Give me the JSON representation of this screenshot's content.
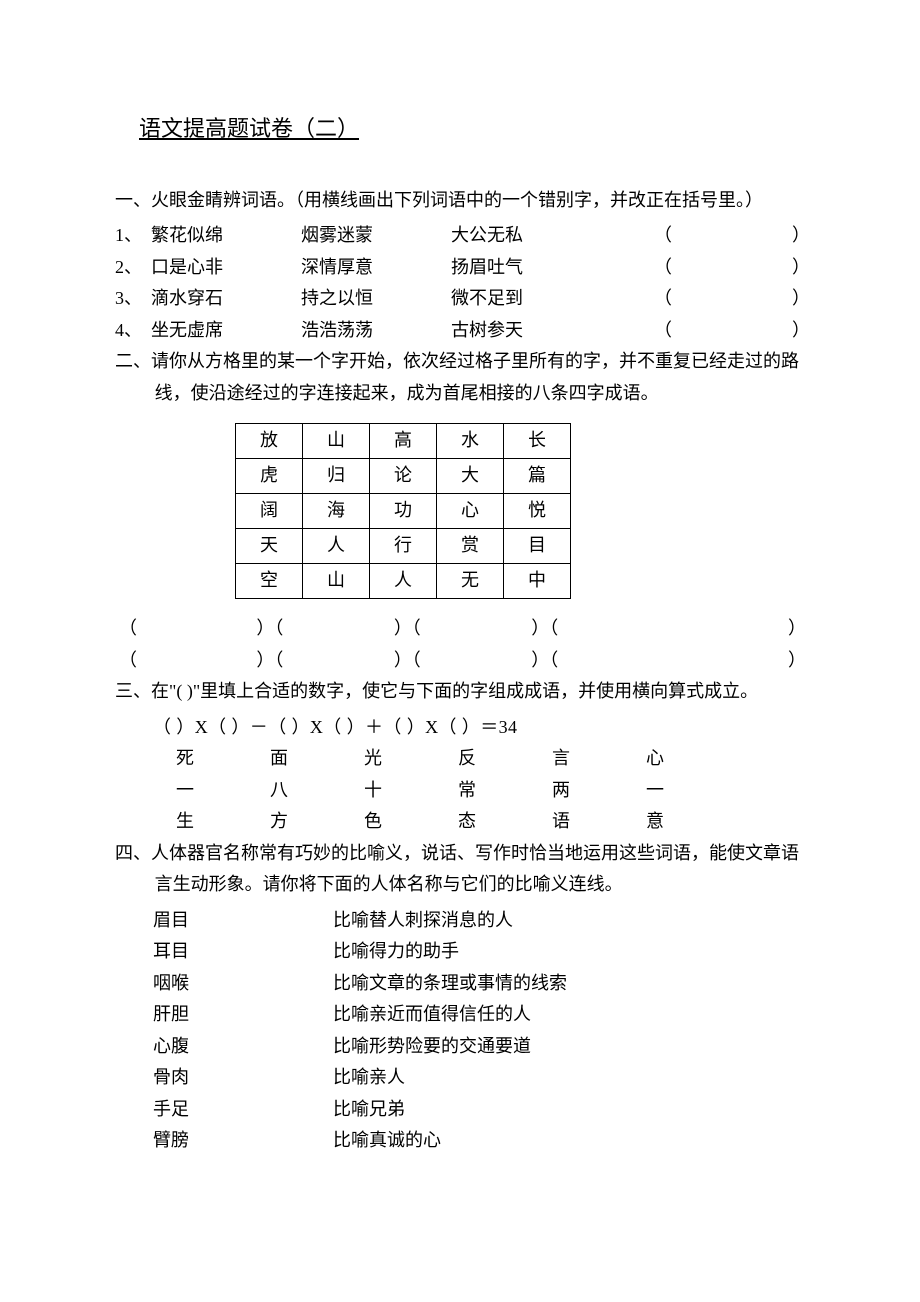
{
  "title": "语文提高题试卷（二）",
  "q1": {
    "heading": "一、火眼金睛辨词语。（用横线画出下列词语中的一个错别字，并改正在括号里。）",
    "rows": [
      {
        "num": "1、",
        "w1": "繁花似绵",
        "w2": "烟雾迷蒙",
        "w3": "大公无私"
      },
      {
        "num": "2、",
        "w1": "口是心非",
        "w2": "深情厚意",
        "w3": "扬眉吐气"
      },
      {
        "num": "3、",
        "w1": "滴水穿石",
        "w2": "持之以恒",
        "w3": "微不足到"
      },
      {
        "num": "4、",
        "w1": "坐无虚席",
        "w2": "浩浩荡荡",
        "w3": "古树参天"
      }
    ]
  },
  "q2": {
    "heading": "二、请你从方格里的某一个字开始，依次经过格子里所有的字，并不重复已经走过的路线，使沿途经过的字连接起来，成为首尾相接的八条四字成语。",
    "grid": [
      [
        "放",
        "山",
        "高",
        "水",
        "长"
      ],
      [
        "虎",
        "归",
        "论",
        "大",
        "篇"
      ],
      [
        "阔",
        "海",
        "功",
        "心",
        "悦"
      ],
      [
        "天",
        "人",
        "行",
        "赏",
        "目"
      ],
      [
        "空",
        "山",
        "人",
        "无",
        "中"
      ]
    ]
  },
  "q3": {
    "heading": "三、在\"(    )\"里填上合适的数字，使它与下面的字组成成语，并使用横向算式成立。",
    "formula": "（      ）X（      ）－（      ）X（      ）＋（      ）X（      ）＝34",
    "line1": [
      "死",
      "面",
      "光",
      "反",
      "言",
      "心"
    ],
    "line2": [
      "一",
      "八",
      "十",
      "常",
      "两",
      "一"
    ],
    "line3": [
      "生",
      "方",
      "色",
      "态",
      "语",
      "意"
    ]
  },
  "q4": {
    "heading": "四、人体器官名称常有巧妙的比喻义，说话、写作时恰当地运用这些词语，能使文章语言生动形象。请你将下面的人体名称与它们的比喻义连线。",
    "pairs": [
      {
        "l": "眉目",
        "r": "比喻替人刺探消息的人"
      },
      {
        "l": "耳目",
        "r": "比喻得力的助手"
      },
      {
        "l": "咽喉",
        "r": "比喻文章的条理或事情的线索"
      },
      {
        "l": "肝胆",
        "r": "比喻亲近而值得信任的人"
      },
      {
        "l": "心腹",
        "r": "比喻形势险要的交通要道"
      },
      {
        "l": "骨肉",
        "r": "比喻亲人"
      },
      {
        "l": "手足",
        "r": "比喻兄弟"
      },
      {
        "l": "臂膀",
        "r": "比喻真诚的心"
      }
    ]
  },
  "paren_open": "（",
  "paren_close": "）"
}
